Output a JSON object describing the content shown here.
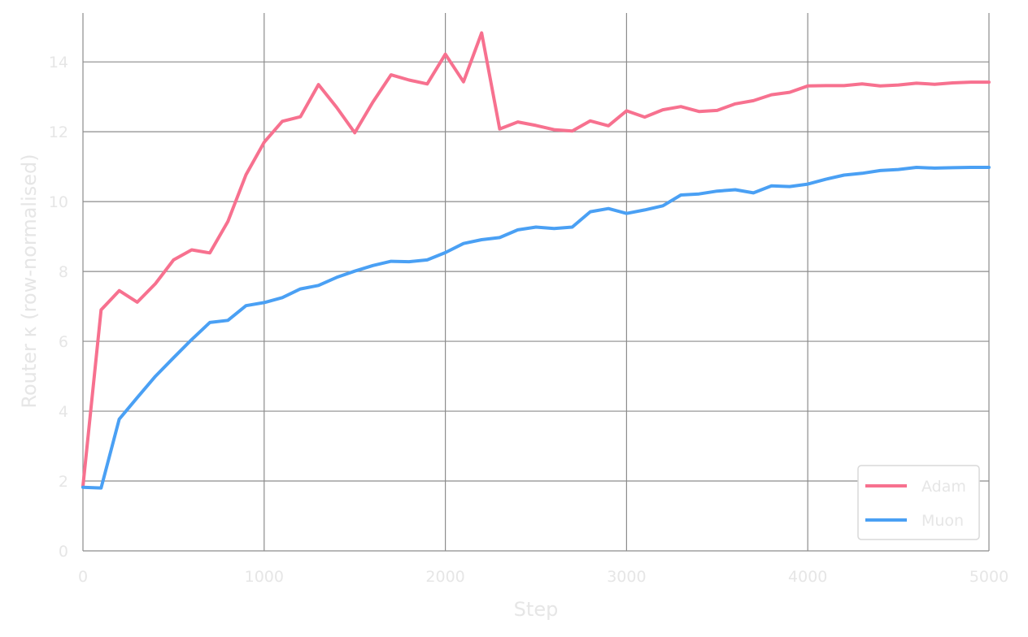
{
  "chart_data": {
    "type": "line",
    "title": "",
    "xlabel": "Step",
    "ylabel": "Router κ (row-normalised)",
    "xlim": [
      0,
      5000
    ],
    "ylim": [
      0,
      15.4
    ],
    "xticks": [
      0,
      1000,
      2000,
      3000,
      4000,
      5000
    ],
    "xtick_labels": [
      "0",
      "1000",
      "2000",
      "3000",
      "4000",
      "5000"
    ],
    "yticks": [
      0,
      2,
      4,
      6,
      8,
      10,
      12,
      14
    ],
    "ytick_labels": [
      "0",
      "2",
      "4",
      "6",
      "8",
      "10",
      "12",
      "14"
    ],
    "grid": true,
    "legend_position": "bottom-right",
    "x": [
      0,
      100,
      200,
      300,
      400,
      500,
      600,
      700,
      800,
      900,
      1000,
      1100,
      1200,
      1300,
      1400,
      1500,
      1600,
      1700,
      1800,
      1900,
      2000,
      2100,
      2200,
      2300,
      2400,
      2500,
      2600,
      2700,
      2800,
      2900,
      3000,
      3100,
      3200,
      3300,
      3400,
      3500,
      3600,
      3700,
      3800,
      3900,
      4000,
      4100,
      4200,
      4300,
      4400,
      4500,
      4600,
      4700,
      4800,
      4900,
      5000
    ],
    "series": [
      {
        "name": "Adam",
        "color": "#f7718f",
        "values": [
          1.85,
          6.9,
          7.45,
          7.12,
          7.65,
          8.33,
          8.62,
          8.53,
          9.43,
          10.77,
          11.7,
          12.3,
          12.43,
          13.35,
          12.7,
          11.97,
          12.85,
          13.63,
          13.48,
          13.37,
          14.22,
          13.43,
          14.83,
          12.08,
          12.28,
          12.18,
          12.06,
          12.02,
          12.31,
          12.17,
          12.6,
          12.42,
          12.63,
          12.72,
          12.58,
          12.61,
          12.8,
          12.89,
          13.06,
          13.13,
          13.31,
          13.32,
          13.32,
          13.37,
          13.31,
          13.34,
          13.39,
          13.36,
          13.4,
          13.42,
          13.42
        ]
      },
      {
        "name": "Muon",
        "color": "#4aa0f4",
        "values": [
          1.82,
          1.8,
          3.77,
          4.39,
          5.0,
          5.53,
          6.05,
          6.54,
          6.6,
          7.02,
          7.11,
          7.25,
          7.5,
          7.6,
          7.83,
          8.01,
          8.17,
          8.29,
          8.28,
          8.33,
          8.54,
          8.8,
          8.91,
          8.97,
          9.19,
          9.27,
          9.23,
          9.27,
          9.71,
          9.8,
          9.66,
          9.76,
          9.88,
          10.19,
          10.22,
          10.3,
          10.34,
          10.25,
          10.45,
          10.43,
          10.5,
          10.64,
          10.76,
          10.81,
          10.89,
          10.92,
          10.98,
          10.96,
          10.97,
          10.98,
          10.98
        ]
      }
    ]
  }
}
